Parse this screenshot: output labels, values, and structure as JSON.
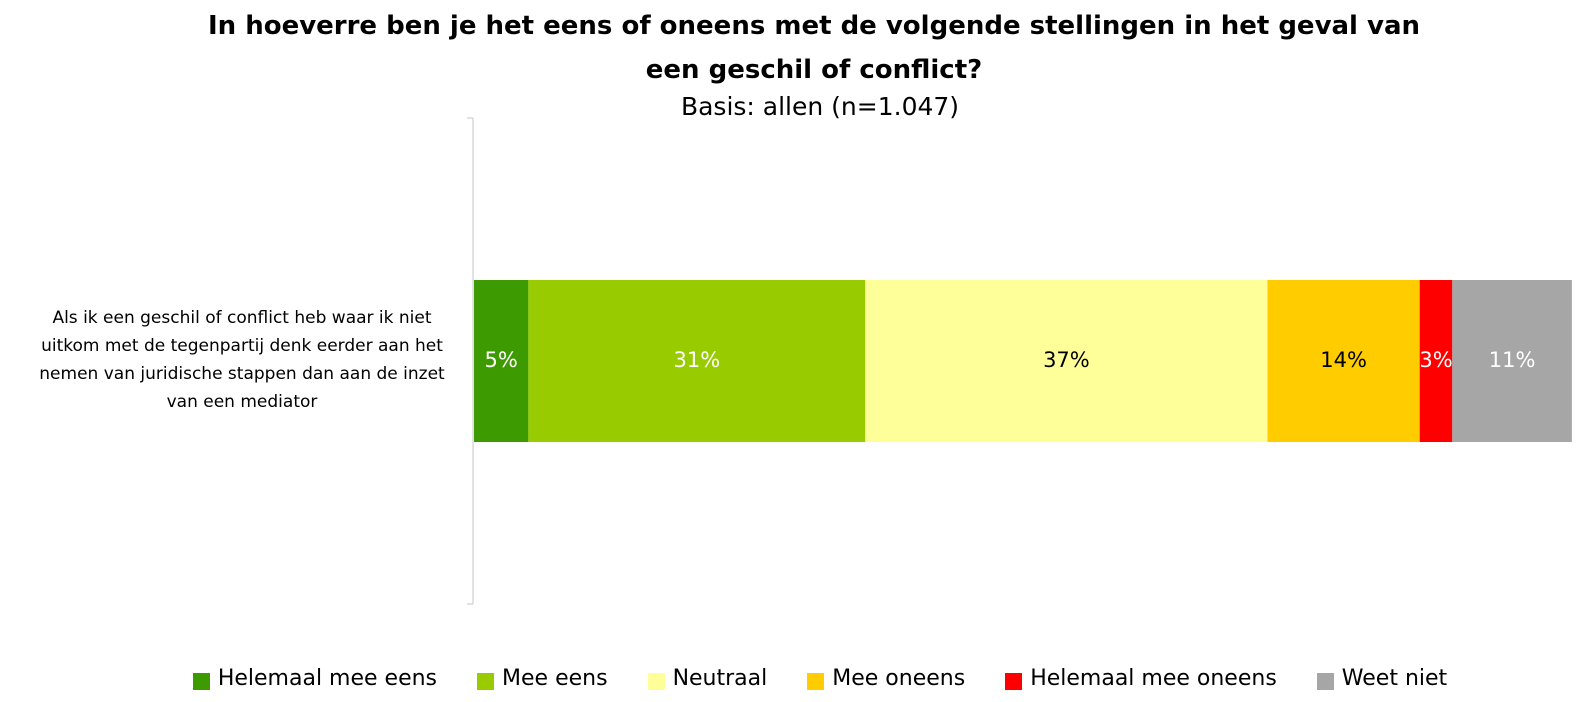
{
  "chart_data": {
    "type": "stacked-bar-horizontal",
    "title": "In hoeverre ben je het eens of oneens met de volgende stellingen in het geval van een geschil of conflict?",
    "subtitle": "Basis: allen (n=1.047)",
    "categories": [
      "Als ik een geschil of conflict heb waar ik niet uitkom met de tegenpartij denk eerder aan het nemen van juridische stappen dan aan de inzet van een mediator"
    ],
    "series": [
      {
        "name": "Helemaal mee eens",
        "color": "#3d9a00",
        "values": [
          5
        ],
        "value_labels": [
          "5%"
        ]
      },
      {
        "name": "Mee eens",
        "color": "#99cc00",
        "values": [
          31
        ],
        "value_labels": [
          "31%"
        ]
      },
      {
        "name": "Neutraal",
        "color": "#ffff99",
        "values": [
          37
        ],
        "value_labels": [
          "37%"
        ]
      },
      {
        "name": "Mee oneens",
        "color": "#ffcc00",
        "values": [
          14
        ],
        "value_labels": [
          "14%"
        ]
      },
      {
        "name": "Helemaal mee oneens",
        "color": "#ff0000",
        "values": [
          3
        ],
        "value_labels": [
          "3%"
        ]
      },
      {
        "name": "Weet niet",
        "color": "#a6a6a6",
        "values": [
          11
        ],
        "value_labels": [
          "11%"
        ]
      }
    ],
    "xlim": [
      0,
      100
    ],
    "legend": "bottom"
  }
}
